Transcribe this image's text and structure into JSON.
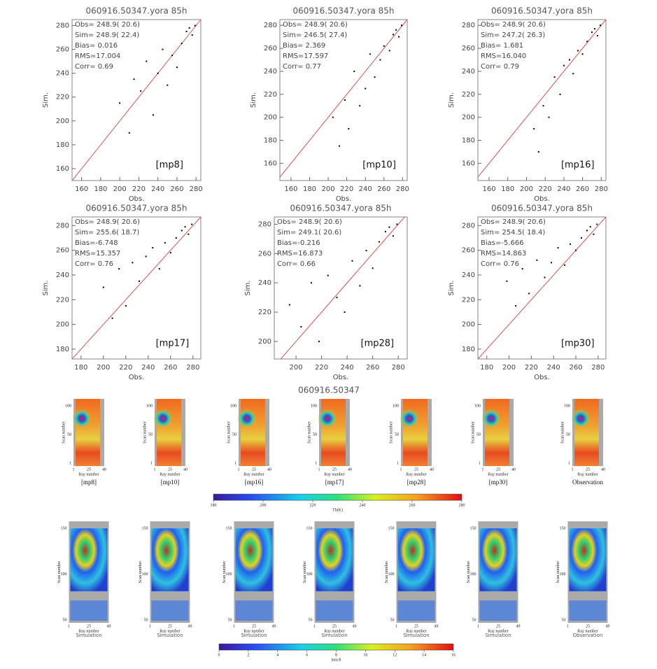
{
  "chart_data": [
    {
      "type": "scatter",
      "title": "060916.50347.yora   85h",
      "x_label": "Obs.",
      "y_label": "Sim.",
      "stats": [
        "Obs= 248.9( 20.6)",
        "Sim= 248.9( 22.4)",
        "Bias= 0.016",
        "RMS=17.004",
        "Corr= 0.69"
      ],
      "tag": "[mp8]",
      "xlim": [
        150,
        285
      ],
      "ylim": [
        150,
        285
      ],
      "xticks": [
        160,
        180,
        200,
        220,
        240,
        260,
        280
      ],
      "yticks": [
        160,
        180,
        200,
        220,
        240,
        260,
        280
      ],
      "color": "#000000",
      "line_color": "#e05050",
      "x": [
        200,
        210,
        215,
        222,
        228,
        235,
        240,
        245,
        250,
        255,
        260,
        265,
        270,
        273,
        276,
        279
      ],
      "y": [
        215,
        190,
        235,
        225,
        250,
        205,
        240,
        260,
        230,
        255,
        245,
        265,
        275,
        278,
        272,
        280
      ]
    },
    {
      "type": "scatter",
      "title": "060916.50347.yora   85h",
      "x_label": "Obs.",
      "y_label": "Sim.",
      "stats": [
        "Obs= 248.9( 20.6)",
        "Sim= 246.5( 27.4)",
        "Bias= 2.369",
        "RMS=17.597",
        "Corr= 0.77"
      ],
      "tag": "[mp10]",
      "xlim": [
        148,
        285
      ],
      "ylim": [
        145,
        285
      ],
      "xticks": [
        160,
        180,
        200,
        220,
        240,
        260,
        280
      ],
      "yticks": [
        160,
        180,
        200,
        220,
        240,
        260,
        280
      ],
      "color": "#000000",
      "line_color": "#e05050",
      "x": [
        205,
        212,
        218,
        222,
        228,
        234,
        240,
        245,
        250,
        256,
        260,
        266,
        270,
        273,
        276,
        279
      ],
      "y": [
        200,
        175,
        215,
        190,
        240,
        210,
        225,
        255,
        235,
        250,
        262,
        258,
        272,
        276,
        270,
        280
      ]
    },
    {
      "type": "scatter",
      "title": "060916.50347.yora   85h",
      "x_label": "Obs.",
      "y_label": "Sim.",
      "stats": [
        "Obs= 248.9( 20.6)",
        "Sim= 247.2( 26.3)",
        "Bias= 1.681",
        "RMS=16.040",
        "Corr= 0.79"
      ],
      "tag": "[mp16]",
      "xlim": [
        148,
        285
      ],
      "ylim": [
        145,
        285
      ],
      "xticks": [
        160,
        180,
        200,
        220,
        240,
        260,
        280
      ],
      "yticks": [
        160,
        180,
        200,
        220,
        240,
        260,
        280
      ],
      "color": "#000000",
      "line_color": "#e05050",
      "x": [
        208,
        213,
        218,
        224,
        230,
        236,
        240,
        246,
        250,
        255,
        260,
        265,
        270,
        273,
        276,
        279
      ],
      "y": [
        190,
        170,
        210,
        200,
        235,
        220,
        245,
        250,
        238,
        258,
        255,
        266,
        274,
        277,
        271,
        280
      ]
    },
    {
      "type": "scatter",
      "title": "060916.50347.yora   85h",
      "x_label": "Obs.",
      "y_label": "Sim.",
      "stats": [
        "Obs= 248.9( 20.6)",
        "Sim= 255.6( 18.7)",
        "Bias=-6.748",
        "RMS=15.357",
        "Corr= 0.76"
      ],
      "tag": "[mp17]",
      "xlim": [
        172,
        287
      ],
      "ylim": [
        172,
        287
      ],
      "xticks": [
        180,
        200,
        220,
        240,
        260,
        280
      ],
      "yticks": [
        180,
        200,
        220,
        240,
        260,
        280
      ],
      "color": "#000000",
      "line_color": "#e05050",
      "x": [
        200,
        208,
        214,
        220,
        226,
        232,
        238,
        244,
        250,
        255,
        260,
        265,
        270,
        273,
        276,
        279
      ],
      "y": [
        230,
        205,
        245,
        215,
        250,
        235,
        255,
        262,
        245,
        266,
        258,
        270,
        276,
        279,
        273,
        281
      ]
    },
    {
      "type": "scatter",
      "title": "060916.50347.yora   85h",
      "x_label": "Obs.",
      "y_label": "Sim.",
      "stats": [
        "Obs= 248.9( 20.6)",
        "Sim= 249.1( 20.6)",
        "Bias=-0.216",
        "RMS=16.873",
        "Corr= 0.66"
      ],
      "tag": "[mp28]",
      "xlim": [
        183,
        287
      ],
      "ylim": [
        188,
        285
      ],
      "xticks": [
        200,
        220,
        240,
        260,
        280
      ],
      "yticks": [
        200,
        220,
        240,
        260,
        280
      ],
      "color": "#000000",
      "line_color": "#e05050",
      "x": [
        195,
        204,
        212,
        218,
        225,
        232,
        238,
        244,
        250,
        255,
        260,
        265,
        270,
        273,
        276,
        279
      ],
      "y": [
        225,
        210,
        240,
        200,
        245,
        230,
        220,
        255,
        238,
        262,
        250,
        268,
        275,
        278,
        272,
        280
      ]
    },
    {
      "type": "scatter",
      "title": "060916.50347.yora   85h",
      "x_label": "Obs.",
      "y_label": "Sim.",
      "stats": [
        "Obs= 248.9( 20.6)",
        "Sim= 254.5( 18.4)",
        "Bias=-5.666",
        "RMS=14.863",
        "Corr= 0.76"
      ],
      "tag": "[mp30]",
      "xlim": [
        172,
        287
      ],
      "ylim": [
        172,
        287
      ],
      "xticks": [
        180,
        200,
        220,
        240,
        260,
        280
      ],
      "yticks": [
        180,
        200,
        220,
        240,
        260,
        280
      ],
      "color": "#000000",
      "line_color": "#e05050",
      "x": [
        198,
        206,
        212,
        218,
        225,
        232,
        238,
        244,
        250,
        255,
        260,
        265,
        270,
        273,
        276,
        279
      ],
      "y": [
        235,
        215,
        245,
        225,
        252,
        238,
        250,
        262,
        248,
        265,
        260,
        270,
        276,
        279,
        273,
        281
      ]
    }
  ],
  "tb_figure": {
    "title": "060916.50347",
    "y_label": "Scan number",
    "x_label": "Ray number",
    "yticks": [
      "1",
      "50",
      "100"
    ],
    "xticks": [
      "1",
      "25",
      "40"
    ],
    "panels": [
      "[mp8]",
      "[mp10]",
      "[mp16]",
      "[mp17]",
      "[mp28]",
      "[mp30]",
      "Observation"
    ],
    "colorbar": {
      "label": "Tb(K)",
      "ticks": [
        180,
        200,
        220,
        240,
        260,
        280
      ]
    }
  },
  "rain_figure": {
    "y_label": "Scan number",
    "x_label": "Ray number",
    "yticks": [
      "50",
      "100",
      "150"
    ],
    "xticks": [
      "1",
      "25",
      "49"
    ],
    "panels": [
      "Simulation",
      "Simulation",
      "Simulation",
      "Simulation",
      "Simulation",
      "Simulation",
      "Observation"
    ],
    "colorbar": {
      "label": "mm/h",
      "ticks": [
        0,
        2,
        4,
        6,
        8,
        10,
        12,
        14,
        16
      ]
    }
  }
}
